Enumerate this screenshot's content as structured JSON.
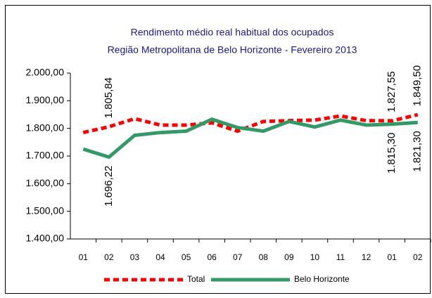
{
  "chart_data": {
    "type": "line",
    "title": "Rendimento médio real habitual dos ocupados",
    "subtitle": "Região Metropolitana de Belo Horizonte - Fevereiro 2013",
    "categories": [
      "01",
      "02",
      "03",
      "04",
      "05",
      "06",
      "07",
      "08",
      "09",
      "10",
      "11",
      "12",
      "01",
      "02"
    ],
    "series": [
      {
        "name": "Total",
        "color": "#ff0000",
        "dash": true,
        "values": [
          1785,
          1805.84,
          1835,
          1812,
          1812,
          1820,
          1790,
          1825,
          1828,
          1830,
          1845,
          1828,
          1827.55,
          1849.5
        ],
        "value_labels": [
          null,
          "1.805,84",
          null,
          null,
          null,
          null,
          null,
          null,
          null,
          null,
          null,
          null,
          "1.827,55",
          "1.849,50"
        ]
      },
      {
        "name": "Belo Horizonte",
        "color": "#339966",
        "dash": false,
        "values": [
          1725,
          1696.22,
          1775,
          1785,
          1790,
          1833,
          1803,
          1790,
          1825,
          1805,
          1830,
          1812,
          1815.3,
          1821.3
        ],
        "value_labels": [
          null,
          "1.696,22",
          null,
          null,
          null,
          null,
          null,
          null,
          null,
          null,
          null,
          null,
          "1.815,30",
          "1.821,30"
        ]
      }
    ],
    "ylim": [
      1400,
      2000
    ],
    "yticks": [
      {
        "value": 1400,
        "label": "1.400,00"
      },
      {
        "value": 1500,
        "label": "1.500,00"
      },
      {
        "value": 1600,
        "label": "1.600,00"
      },
      {
        "value": 1700,
        "label": "1.700,00"
      },
      {
        "value": 1800,
        "label": "1.800,00"
      },
      {
        "value": 1900,
        "label": "1.900,00"
      },
      {
        "value": 2000,
        "label": "2.000,00"
      }
    ],
    "grid": false,
    "legend": "bottom"
  }
}
